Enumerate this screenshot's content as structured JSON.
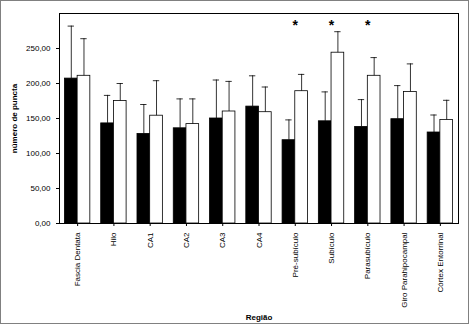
{
  "chart_data": {
    "type": "bar",
    "x_label": "Região",
    "y_label": "número de puncta",
    "categories": [
      "Fascia Dentata",
      "Hilo",
      "CA1",
      "CA2",
      "CA3",
      "CA4",
      "Pré-subículo",
      "Subículo",
      "Parasubículo",
      "Giro Parahipocampal",
      "Córtex Entorrinal"
    ],
    "series": [
      {
        "color": "#000000",
        "values": [
          207,
          143,
          128,
          136,
          150,
          167,
          119,
          146,
          138,
          149,
          130
        ],
        "errors": [
          75,
          40,
          42,
          42,
          55,
          44,
          29,
          42,
          39,
          48,
          25
        ]
      },
      {
        "color": "#ffffff",
        "values": [
          211,
          175,
          154,
          142,
          160,
          159,
          189,
          244,
          211,
          188,
          148
        ],
        "errors": [
          53,
          25,
          50,
          36,
          43,
          36,
          24,
          30,
          26,
          40,
          28
        ]
      }
    ],
    "ylim": [
      0,
      300
    ],
    "yticks": [
      {
        "value": 0,
        "label": "0,00"
      },
      {
        "value": 50,
        "label": "50,00"
      },
      {
        "value": 100,
        "label": "100,00"
      },
      {
        "value": 150,
        "label": "150,00"
      },
      {
        "value": 200,
        "label": "200,00"
      },
      {
        "value": 250,
        "label": "250,00"
      }
    ],
    "grid": false,
    "annotations": [
      {
        "category": "Pré-subículo",
        "text": "*",
        "y": 283
      },
      {
        "category": "Subículo",
        "text": "*",
        "y": 283
      },
      {
        "category": "Parasubículo",
        "text": "*",
        "y": 283
      }
    ]
  }
}
